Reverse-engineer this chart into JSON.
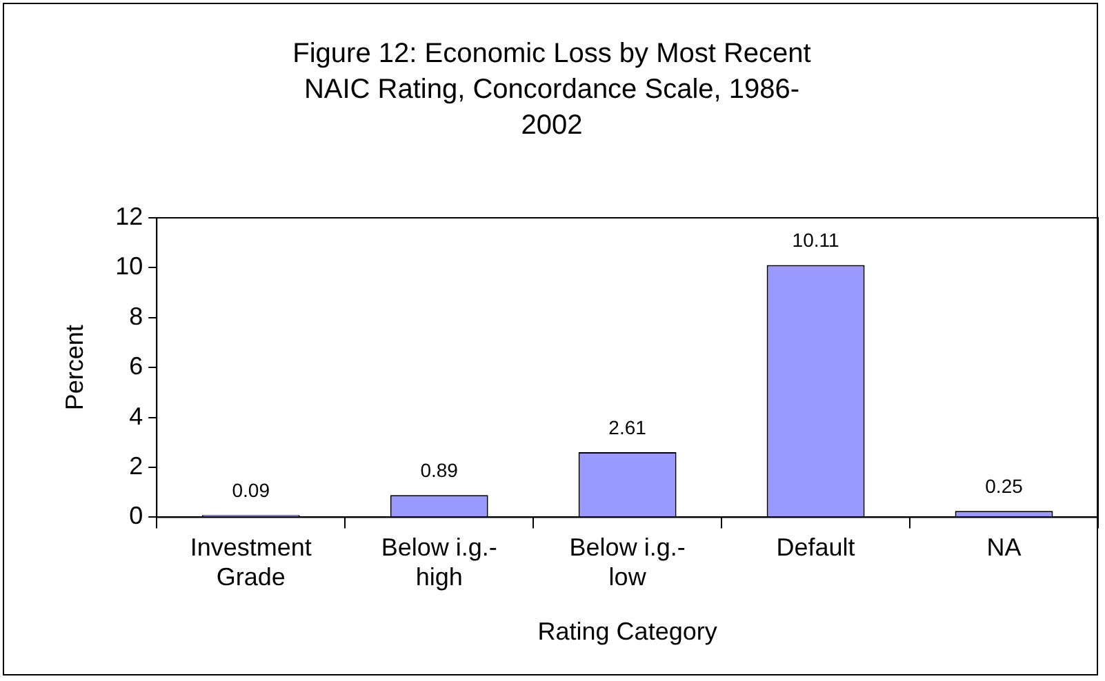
{
  "chart_data": {
    "type": "bar",
    "title": "Figure 12: Economic Loss by Most Recent NAIC Rating, Concordance Scale, 1986-2002",
    "xlabel": "Rating Category",
    "ylabel": "Percent",
    "categories": [
      "Investment\nGrade",
      "Below i.g.-\nhigh",
      "Below i.g.-\nlow",
      "Default",
      "NA"
    ],
    "values": [
      0.09,
      0.89,
      2.61,
      10.11,
      0.25
    ],
    "color": "#9999ff",
    "ylim": [
      0,
      12
    ],
    "yticks": [
      0,
      2,
      4,
      6,
      8,
      10,
      12
    ],
    "grid": false,
    "legend": false,
    "data_labels": true
  }
}
